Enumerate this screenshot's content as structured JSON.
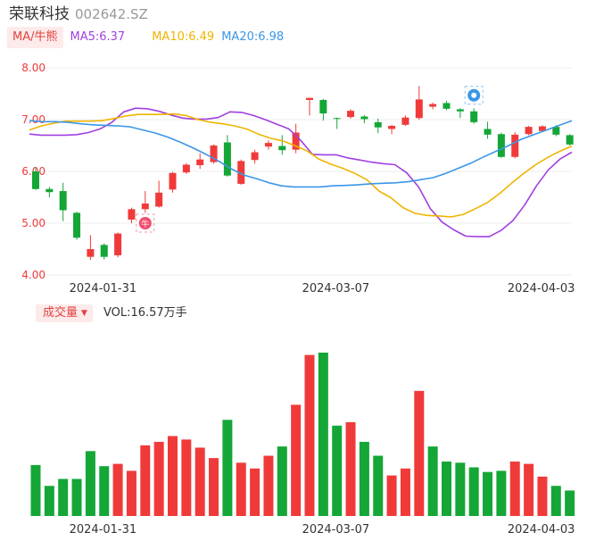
{
  "header": {
    "name": "荣联科技",
    "code": "002642.SZ"
  },
  "ma_legend": {
    "button_label": "MA/牛熊",
    "items": [
      {
        "label": "MA5:6.37",
        "color": "#a040e0"
      },
      {
        "label": "MA10:6.49",
        "color": "#f0b400"
      },
      {
        "label": "MA20:6.98",
        "color": "#3c96e6"
      }
    ]
  },
  "volume_legend": {
    "button_label": "成交量",
    "value_label": "VOL:16.57万手"
  },
  "colors": {
    "up": "#f03a3a",
    "down": "#14a637",
    "bull_marker": "#f04c6e",
    "bear_marker": "#3c96e6"
  },
  "chart_data": [
    {
      "type": "candlestick",
      "title": "荣联科技 002642.SZ",
      "y_ticks": [
        "8.00",
        "7.00",
        "6.00",
        "5.00",
        "4.00"
      ],
      "ylim": [
        4.0,
        8.0
      ],
      "x_tick_labels": [
        {
          "label": "2024-01-31",
          "index": 4
        },
        {
          "label": "2024-03-07",
          "index": 21
        },
        {
          "label": "2024-04-03",
          "index": 36
        }
      ],
      "grid": true,
      "markers": [
        {
          "type": "bull",
          "index": 8,
          "price": 5.0,
          "icon": "niu-bull-icon",
          "text": "牛"
        },
        {
          "type": "bear",
          "index": 32,
          "price": 7.47,
          "icon": "bear-icon"
        }
      ],
      "candles": [
        {
          "o": 6.0,
          "c": 5.66,
          "h": 6.08,
          "l": 5.64
        },
        {
          "o": 5.66,
          "c": 5.6,
          "h": 5.7,
          "l": 5.5
        },
        {
          "o": 5.62,
          "c": 5.25,
          "h": 5.78,
          "l": 5.04
        },
        {
          "o": 5.2,
          "c": 4.72,
          "h": 5.22,
          "l": 4.68
        },
        {
          "o": 4.35,
          "c": 4.5,
          "h": 4.77,
          "l": 4.29
        },
        {
          "o": 4.58,
          "c": 4.35,
          "h": 4.61,
          "l": 4.3
        },
        {
          "o": 4.38,
          "c": 4.8,
          "h": 4.82,
          "l": 4.34
        },
        {
          "o": 5.07,
          "c": 5.27,
          "h": 5.3,
          "l": 5.0
        },
        {
          "o": 5.27,
          "c": 5.38,
          "h": 5.62,
          "l": 5.2
        },
        {
          "o": 5.32,
          "c": 5.59,
          "h": 5.82,
          "l": 5.3
        },
        {
          "o": 5.65,
          "c": 5.97,
          "h": 5.99,
          "l": 5.59
        },
        {
          "o": 5.98,
          "c": 6.13,
          "h": 6.16,
          "l": 5.95
        },
        {
          "o": 6.12,
          "c": 6.23,
          "h": 6.35,
          "l": 6.05
        },
        {
          "o": 6.18,
          "c": 6.5,
          "h": 6.52,
          "l": 6.15
        },
        {
          "o": 6.56,
          "c": 5.92,
          "h": 6.7,
          "l": 5.9
        },
        {
          "o": 5.76,
          "c": 6.2,
          "h": 6.23,
          "l": 5.74
        },
        {
          "o": 6.22,
          "c": 6.37,
          "h": 6.42,
          "l": 6.15
        },
        {
          "o": 6.48,
          "c": 6.55,
          "h": 6.6,
          "l": 6.42
        },
        {
          "o": 6.49,
          "c": 6.41,
          "h": 6.7,
          "l": 6.32
        },
        {
          "o": 6.42,
          "c": 6.75,
          "h": 6.92,
          "l": 6.35
        },
        {
          "o": 7.38,
          "c": 7.42,
          "h": 7.42,
          "l": 7.08
        },
        {
          "o": 7.38,
          "c": 7.12,
          "h": 7.4,
          "l": 6.98
        },
        {
          "o": 7.03,
          "c": 7.02,
          "h": 7.04,
          "l": 6.82
        },
        {
          "o": 7.05,
          "c": 7.17,
          "h": 7.2,
          "l": 7.02
        },
        {
          "o": 7.06,
          "c": 7.01,
          "h": 7.09,
          "l": 6.93
        },
        {
          "o": 6.95,
          "c": 6.85,
          "h": 7.02,
          "l": 6.74
        },
        {
          "o": 6.82,
          "c": 6.88,
          "h": 6.9,
          "l": 6.72
        },
        {
          "o": 6.9,
          "c": 7.04,
          "h": 7.08,
          "l": 6.88
        },
        {
          "o": 7.03,
          "c": 7.39,
          "h": 7.65,
          "l": 7.0
        },
        {
          "o": 7.25,
          "c": 7.3,
          "h": 7.33,
          "l": 7.2
        },
        {
          "o": 7.32,
          "c": 7.21,
          "h": 7.36,
          "l": 7.18
        },
        {
          "o": 7.2,
          "c": 7.16,
          "h": 7.22,
          "l": 7.03
        },
        {
          "o": 7.16,
          "c": 6.95,
          "h": 7.22,
          "l": 6.92
        },
        {
          "o": 6.82,
          "c": 6.71,
          "h": 6.96,
          "l": 6.63
        },
        {
          "o": 6.72,
          "c": 6.28,
          "h": 6.75,
          "l": 6.26
        },
        {
          "o": 6.28,
          "c": 6.71,
          "h": 6.76,
          "l": 6.25
        },
        {
          "o": 6.72,
          "c": 6.86,
          "h": 6.88,
          "l": 6.7
        },
        {
          "o": 6.78,
          "c": 6.87,
          "h": 6.89,
          "l": 6.76
        },
        {
          "o": 6.86,
          "c": 6.71,
          "h": 6.89,
          "l": 6.68
        },
        {
          "o": 6.7,
          "c": 6.52,
          "h": 6.72,
          "l": 6.5
        }
      ],
      "ma_series": [
        {
          "name": "MA5",
          "color": "#a040e0",
          "values": [
            6.72,
            6.7,
            6.7,
            6.7,
            6.71,
            6.75,
            6.82,
            6.95,
            7.15,
            7.22,
            7.21,
            7.16,
            7.09,
            7.03,
            7.01,
            7.01,
            7.04,
            7.15,
            7.14,
            7.08,
            7.0,
            6.91,
            6.82,
            6.6,
            6.33,
            6.32,
            6.32,
            6.26,
            6.22,
            6.18,
            6.15,
            6.13,
            5.97,
            5.7,
            5.28,
            5.02,
            4.87,
            4.75,
            4.74,
            4.74,
            4.86,
            5.05,
            5.35,
            5.72,
            6.03,
            6.24,
            6.37
          ]
        },
        {
          "name": "MA10",
          "color": "#f0b400",
          "values": [
            6.8,
            6.88,
            6.93,
            6.97,
            6.97,
            6.97,
            6.98,
            7.02,
            7.07,
            7.1,
            7.1,
            7.1,
            7.11,
            7.08,
            7.0,
            6.95,
            6.92,
            6.88,
            6.82,
            6.72,
            6.64,
            6.59,
            6.5,
            6.4,
            6.24,
            6.14,
            6.06,
            5.96,
            5.84,
            5.62,
            5.49,
            5.3,
            5.19,
            5.15,
            5.14,
            5.12,
            5.17,
            5.28,
            5.4,
            5.57,
            5.77,
            5.96,
            6.13,
            6.27,
            6.39,
            6.49
          ]
        },
        {
          "name": "MA20",
          "color": "#3c96e6",
          "values": [
            6.98,
            6.96,
            6.96,
            6.95,
            6.92,
            6.9,
            6.89,
            6.88,
            6.86,
            6.8,
            6.74,
            6.66,
            6.56,
            6.45,
            6.33,
            6.2,
            6.05,
            5.93,
            5.86,
            5.78,
            5.72,
            5.7,
            5.7,
            5.7,
            5.72,
            5.73,
            5.74,
            5.76,
            5.77,
            5.78,
            5.8,
            5.84,
            5.88,
            5.96,
            6.06,
            6.16,
            6.28,
            6.39,
            6.5,
            6.62,
            6.71,
            6.8,
            6.89,
            6.98
          ]
        }
      ]
    },
    {
      "type": "bar",
      "title": "成交量",
      "units": "万手",
      "x_tick_labels": [
        {
          "label": "2024-01-31",
          "index": 4
        },
        {
          "label": "2024-03-07",
          "index": 21
        },
        {
          "label": "2024-04-03",
          "index": 36
        }
      ],
      "values": [
        22.0,
        13.0,
        16.0,
        16.0,
        28.0,
        21.5,
        22.5,
        19.5,
        30.5,
        32.0,
        34.5,
        33.0,
        29.5,
        25.0,
        41.5,
        23.0,
        20.5,
        26.0,
        30.0,
        48.0,
        69.5,
        70.5,
        39.0,
        40.5,
        32.0,
        26.0,
        17.5,
        20.5,
        54.0,
        30.0,
        23.5,
        23.0,
        21.0,
        19.0,
        19.5,
        23.5,
        22.5,
        17.0,
        13.0,
        11.0
      ],
      "directions": [
        "down",
        "down",
        "down",
        "down",
        "down",
        "down",
        "up",
        "up",
        "up",
        "up",
        "up",
        "up",
        "up",
        "up",
        "down",
        "up",
        "up",
        "up",
        "down",
        "up",
        "up",
        "down",
        "down",
        "up",
        "down",
        "down",
        "up",
        "up",
        "up",
        "down",
        "down",
        "down",
        "down",
        "down",
        "down",
        "up",
        "up",
        "up",
        "down",
        "down"
      ]
    }
  ]
}
